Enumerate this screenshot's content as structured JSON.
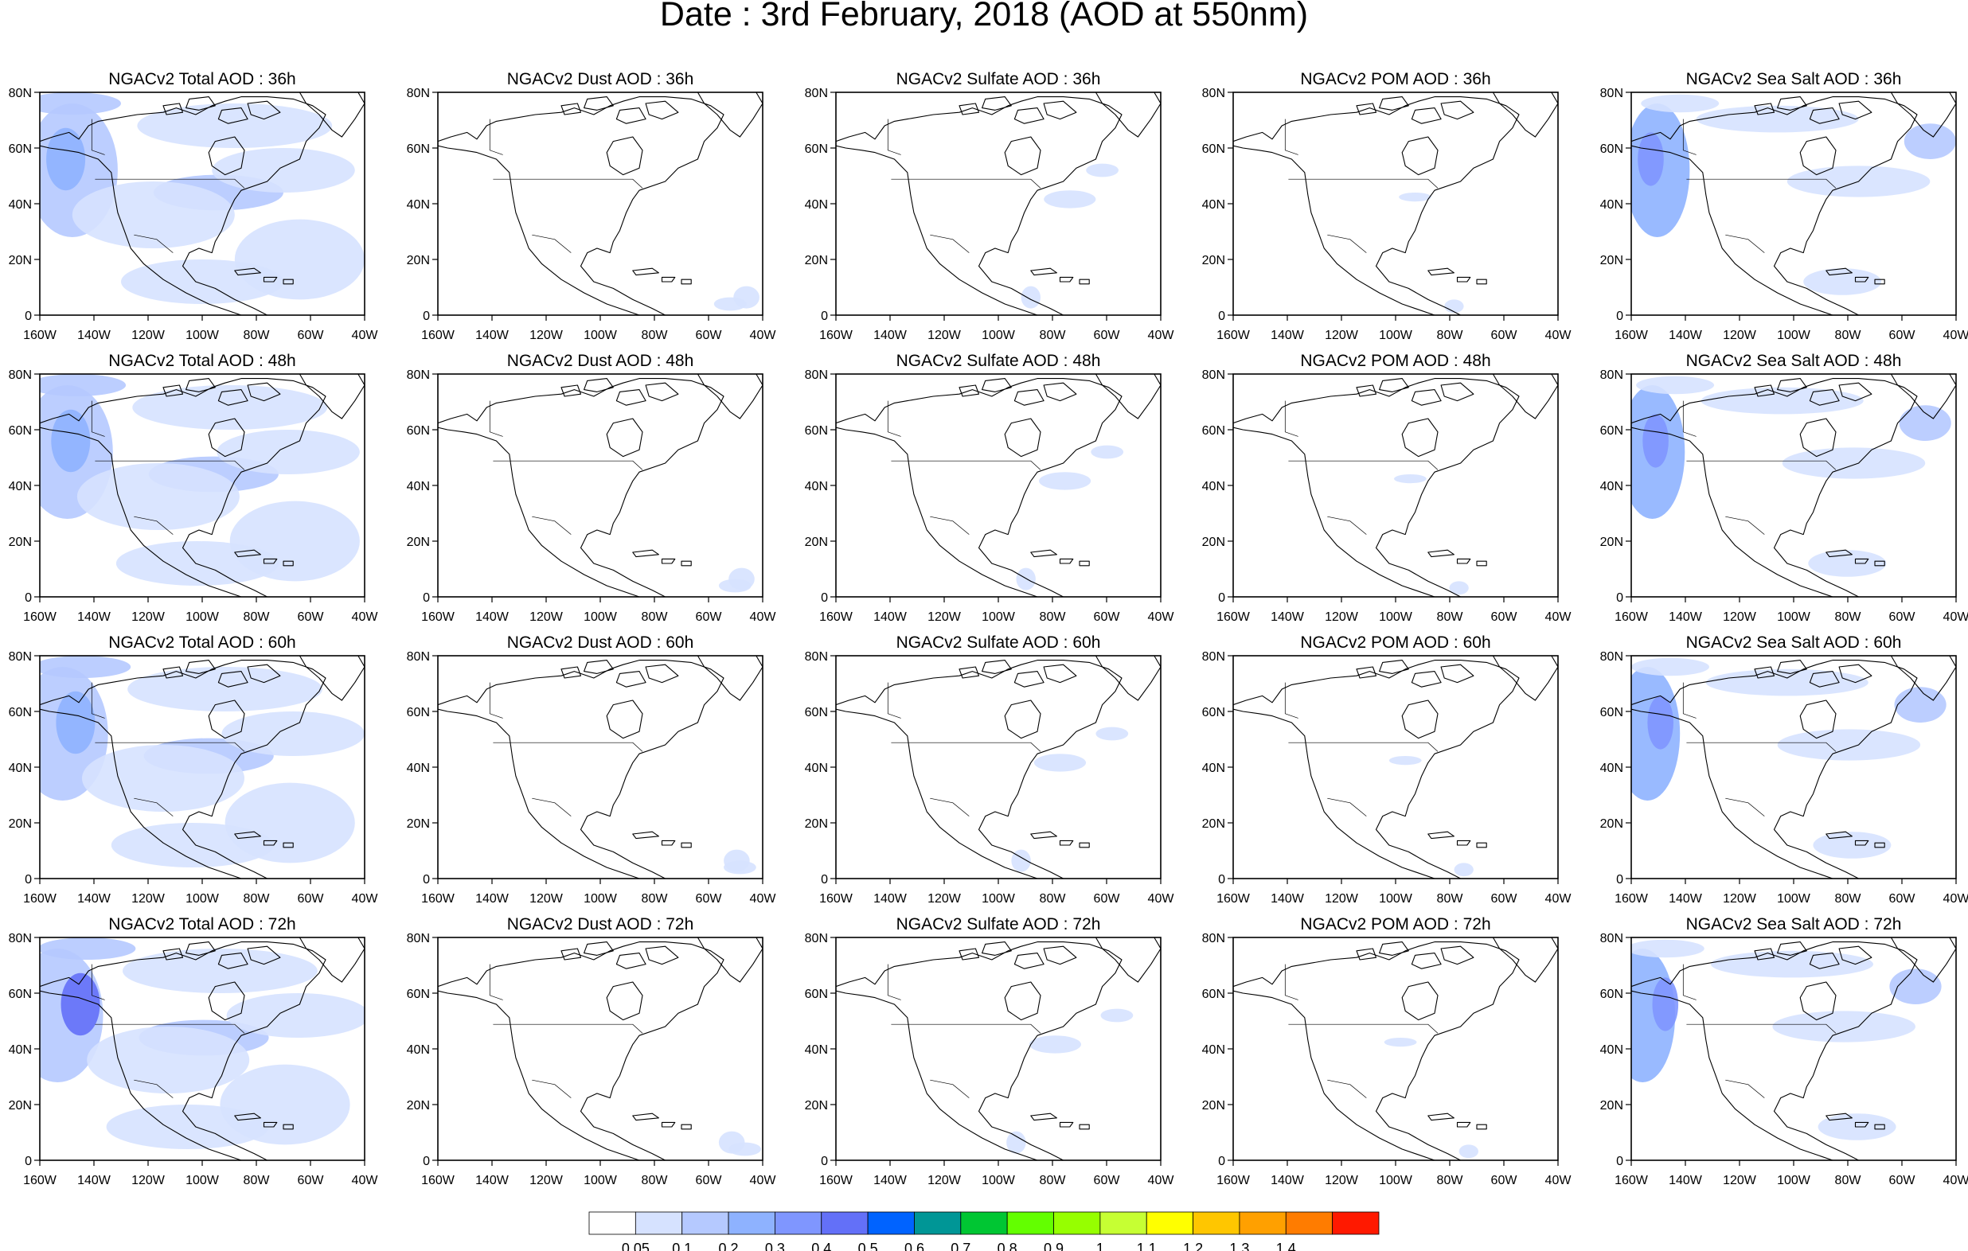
{
  "title": "Date : 3rd February, 2018 (AOD at 550nm)",
  "columns": [
    {
      "name": "total",
      "titles": [
        "NGACv2 Total AOD : 36h",
        "NGACv2 Total AOD : 48h",
        "NGACv2 Total AOD : 60h",
        "NGACv2 Total AOD : 72h"
      ],
      "intensity": 1.0
    },
    {
      "name": "dust",
      "titles": [
        "NGACv2 Dust AOD : 36h",
        "NGACv2 Dust AOD : 48h",
        "NGACv2 Dust AOD : 60h",
        "NGACv2 Dust AOD : 72h"
      ],
      "intensity": 0.08
    },
    {
      "name": "sulfate",
      "titles": [
        "NGACv2 Sulfate AOD : 36h",
        "NGACv2 Sulfate AOD : 48h",
        "NGACv2 Sulfate AOD : 60h",
        "NGACv2 Sulfate AOD : 72h"
      ],
      "intensity": 0.12
    },
    {
      "name": "pom",
      "titles": [
        "NGACv2 POM AOD : 36h",
        "NGACv2 POM AOD : 48h",
        "NGACv2 POM AOD : 60h",
        "NGACv2 POM AOD : 72h"
      ],
      "intensity": 0.07
    },
    {
      "name": "seasalt",
      "titles": [
        "NGACv2 Sea Salt AOD : 36h",
        "NGACv2 Sea Salt AOD : 48h",
        "NGACv2 Sea Salt AOD : 60h",
        "NGACv2 Sea Salt  AOD : 72h"
      ],
      "intensity": 0.8
    }
  ],
  "lat_ticks": [
    "0",
    "20N",
    "40N",
    "60N",
    "80N"
  ],
  "lon_ticks": [
    "160W",
    "140W",
    "120W",
    "100W",
    "80W",
    "60W",
    "40W"
  ],
  "map_extent": {
    "lon": [
      -160,
      -40
    ],
    "lat": [
      0,
      80
    ]
  },
  "colorbar": {
    "colors": [
      "#ffffff",
      "#d6e2ff",
      "#b5c9ff",
      "#8eb2ff",
      "#7f96ff",
      "#6370f8",
      "#0063ff",
      "#009696",
      "#00c633",
      "#63ff00",
      "#96ff00",
      "#c6ff33",
      "#ffff00",
      "#ffc600",
      "#ffa000",
      "#ff7c00",
      "#ff1900"
    ],
    "labels": [
      "0.05",
      "0.1",
      "0.2",
      "0.3",
      "0.4",
      "0.5",
      "0.6",
      "0.7",
      "0.8",
      "0.9",
      "1",
      "1.1",
      "1.2",
      "1.3",
      "1.4"
    ]
  }
}
